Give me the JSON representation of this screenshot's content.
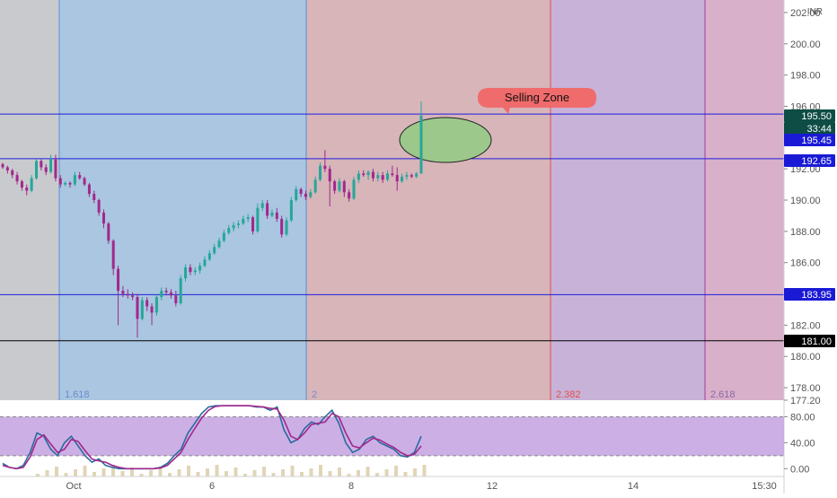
{
  "currency": "INR",
  "colors": {
    "bull": "#26a69a",
    "bear": "#a0288c",
    "hline": "#1e1edc",
    "black_line": "#000000",
    "price_tag_blue": "#1a1ad6",
    "price_tag_green": "#0d4d46",
    "ellipse_fill": "#9cc98b",
    "annotation": "#f06b6b",
    "stoch_k": "#2a6b9e",
    "stoch_d": "#a0288c",
    "stoch_band": "#c6a6e2"
  },
  "chart_data": [
    {
      "type": "candlestick",
      "currency": "INR",
      "x_ticks": [
        "Oct",
        "6",
        "8",
        "12",
        "14",
        "15:30"
      ],
      "ylim": [
        177.2,
        202.8
      ],
      "y_ticks": [
        "202.00",
        "200.00",
        "198.00",
        "196.00",
        "192.00",
        "190.00",
        "188.00",
        "186.00",
        "182.00",
        "180.00",
        "178.00",
        "177.20"
      ],
      "fib_zones": [
        {
          "label": "",
          "color": "#c9cacd"
        },
        {
          "label": "1.618",
          "color": "#aac6e0"
        },
        {
          "label": "2",
          "color": "#d7b5b9"
        },
        {
          "label": "2.382",
          "color": "#c8b2d8"
        },
        {
          "label": "2.618",
          "color": "#d8b0c9"
        }
      ],
      "horizontal_lines": [
        195.5,
        192.65,
        183.95,
        181.0
      ],
      "price_labels": [
        {
          "value": 195.5,
          "text": "195.50",
          "style": "green"
        },
        {
          "value": 195.5,
          "text": "33:44",
          "style": "green"
        },
        {
          "value": 195.45,
          "text": "195.45",
          "style": "blue"
        },
        {
          "value": 192.65,
          "text": "192.65",
          "style": "blue"
        },
        {
          "value": 183.95,
          "text": "183.95",
          "style": "blue"
        },
        {
          "value": 181.0,
          "text": "181.00",
          "style": "black"
        }
      ],
      "annotation": "Selling Zone",
      "candles": [
        [
          192.3,
          192.4,
          192.0,
          192.1
        ],
        [
          192.1,
          192.2,
          191.7,
          191.9
        ],
        [
          191.9,
          192.0,
          191.4,
          191.6
        ],
        [
          191.6,
          191.8,
          191.0,
          191.2
        ],
        [
          191.2,
          191.3,
          190.6,
          190.8
        ],
        [
          190.8,
          191.0,
          190.3,
          190.6
        ],
        [
          190.6,
          191.6,
          190.5,
          191.4
        ],
        [
          191.4,
          192.6,
          191.3,
          192.5
        ],
        [
          192.5,
          192.6,
          191.9,
          192.1
        ],
        [
          192.1,
          192.3,
          191.6,
          191.8
        ],
        [
          191.8,
          192.9,
          191.7,
          192.6
        ],
        [
          192.6,
          192.9,
          191.2,
          191.4
        ],
        [
          191.4,
          191.6,
          190.8,
          191.0
        ],
        [
          191.0,
          191.2,
          190.9,
          191.1
        ],
        [
          191.1,
          191.2,
          190.8,
          191.0
        ],
        [
          191.0,
          191.8,
          190.9,
          191.6
        ],
        [
          191.6,
          191.8,
          191.3,
          191.4
        ],
        [
          191.4,
          191.5,
          190.9,
          191.0
        ],
        [
          191.0,
          191.1,
          190.2,
          190.4
        ],
        [
          190.4,
          190.6,
          189.8,
          190.0
        ],
        [
          190.0,
          190.1,
          189.0,
          189.2
        ],
        [
          189.2,
          189.4,
          188.2,
          188.5
        ],
        [
          188.5,
          188.6,
          187.2,
          187.4
        ],
        [
          187.4,
          187.5,
          185.2,
          185.6
        ],
        [
          185.6,
          185.8,
          182.0,
          184.2
        ],
        [
          184.2,
          184.5,
          183.8,
          184.0
        ],
        [
          184.0,
          184.3,
          183.7,
          183.9
        ],
        [
          183.9,
          184.1,
          183.6,
          183.8
        ],
        [
          183.8,
          184.0,
          181.2,
          182.4
        ],
        [
          182.4,
          183.8,
          182.3,
          183.6
        ],
        [
          183.6,
          183.8,
          182.9,
          183.2
        ],
        [
          183.2,
          183.4,
          182.0,
          182.8
        ],
        [
          182.8,
          184.0,
          182.6,
          183.8
        ],
        [
          183.8,
          184.4,
          183.6,
          184.2
        ],
        [
          184.2,
          184.4,
          183.9,
          184.1
        ],
        [
          184.1,
          184.3,
          183.7,
          183.9
        ],
        [
          183.9,
          184.2,
          183.2,
          183.4
        ],
        [
          183.4,
          185.2,
          183.3,
          185.0
        ],
        [
          185.0,
          185.9,
          184.8,
          185.7
        ],
        [
          185.7,
          185.9,
          185.2,
          185.4
        ],
        [
          185.4,
          185.7,
          185.2,
          185.5
        ],
        [
          185.5,
          186.0,
          185.3,
          185.8
        ],
        [
          185.8,
          186.4,
          185.7,
          186.2
        ],
        [
          186.2,
          186.8,
          186.1,
          186.6
        ],
        [
          186.6,
          187.2,
          186.5,
          187.0
        ],
        [
          187.0,
          187.6,
          186.9,
          187.4
        ],
        [
          187.4,
          188.1,
          187.3,
          187.9
        ],
        [
          187.9,
          188.4,
          187.8,
          188.2
        ],
        [
          188.2,
          188.6,
          188.0,
          188.4
        ],
        [
          188.4,
          188.7,
          188.2,
          188.5
        ],
        [
          188.5,
          189.0,
          188.4,
          188.8
        ],
        [
          188.8,
          189.1,
          188.6,
          188.9
        ],
        [
          188.9,
          189.0,
          187.8,
          188.0
        ],
        [
          188.0,
          189.8,
          187.9,
          189.5
        ],
        [
          189.5,
          190.0,
          189.3,
          189.8
        ],
        [
          189.8,
          190.0,
          188.8,
          189.0
        ],
        [
          189.0,
          189.4,
          188.9,
          189.2
        ],
        [
          189.2,
          189.5,
          188.6,
          188.8
        ],
        [
          188.8,
          189.0,
          187.6,
          187.8
        ],
        [
          187.8,
          188.9,
          187.7,
          188.7
        ],
        [
          188.7,
          190.2,
          188.6,
          190.0
        ],
        [
          190.0,
          190.9,
          189.9,
          190.7
        ],
        [
          190.7,
          190.8,
          190.2,
          190.4
        ],
        [
          190.4,
          190.6,
          190.0,
          190.2
        ],
        [
          190.2,
          190.7,
          190.1,
          190.5
        ],
        [
          190.5,
          191.5,
          190.4,
          191.3
        ],
        [
          191.3,
          192.4,
          191.2,
          192.2
        ],
        [
          192.2,
          193.2,
          191.8,
          192.0
        ],
        [
          192.0,
          192.2,
          189.6,
          191.2
        ],
        [
          191.2,
          191.3,
          190.4,
          190.6
        ],
        [
          190.6,
          191.4,
          190.5,
          191.2
        ],
        [
          191.2,
          191.3,
          190.2,
          190.5
        ],
        [
          190.5,
          190.7,
          189.9,
          190.1
        ],
        [
          190.1,
          191.5,
          190.0,
          191.3
        ],
        [
          191.3,
          191.9,
          191.1,
          191.7
        ],
        [
          191.7,
          191.9,
          191.5,
          191.6
        ],
        [
          191.6,
          191.9,
          191.3,
          191.8
        ],
        [
          191.8,
          192.0,
          191.2,
          191.4
        ],
        [
          191.4,
          191.8,
          191.2,
          191.6
        ],
        [
          191.6,
          191.8,
          191.1,
          191.3
        ],
        [
          191.3,
          191.9,
          191.2,
          191.7
        ],
        [
          191.7,
          192.2,
          191.5,
          191.6
        ],
        [
          191.6,
          192.1,
          190.6,
          191.2
        ],
        [
          191.2,
          191.7,
          191.1,
          191.5
        ],
        [
          191.5,
          191.8,
          191.3,
          191.6
        ],
        [
          191.6,
          191.7,
          191.4,
          191.5
        ],
        [
          191.5,
          191.8,
          191.4,
          191.7
        ],
        [
          191.7,
          196.3,
          191.7,
          195.4
        ]
      ]
    },
    {
      "type": "line",
      "panel": "stochastic",
      "ylim": [
        -12,
        100
      ],
      "y_ticks": [
        "80.00",
        "40.00",
        "0.00"
      ],
      "bands": [
        80,
        20
      ],
      "series": [
        {
          "values": [
            8,
            2,
            0,
            5,
            25,
            55,
            50,
            30,
            20,
            40,
            50,
            35,
            20,
            10,
            15,
            5,
            2,
            0,
            0,
            0,
            0,
            0,
            0,
            2,
            8,
            20,
            30,
            55,
            70,
            85,
            95,
            97,
            97,
            97,
            97,
            97,
            97,
            95,
            95,
            90,
            95,
            60,
            40,
            45,
            62,
            72,
            68,
            80,
            90,
            70,
            40,
            25,
            30,
            45,
            50,
            40,
            35,
            30,
            20,
            18,
            25,
            50
          ]
        },
        {
          "values": [
            5,
            2,
            0,
            2,
            18,
            45,
            52,
            38,
            25,
            30,
            45,
            42,
            28,
            15,
            12,
            10,
            5,
            2,
            0,
            0,
            0,
            0,
            0,
            1,
            5,
            15,
            25,
            45,
            62,
            78,
            90,
            96,
            97,
            97,
            97,
            97,
            97,
            96,
            95,
            93,
            92,
            75,
            50,
            45,
            55,
            68,
            70,
            72,
            85,
            80,
            55,
            35,
            32,
            40,
            47,
            44,
            38,
            33,
            25,
            20,
            22,
            35
          ]
        }
      ]
    }
  ]
}
